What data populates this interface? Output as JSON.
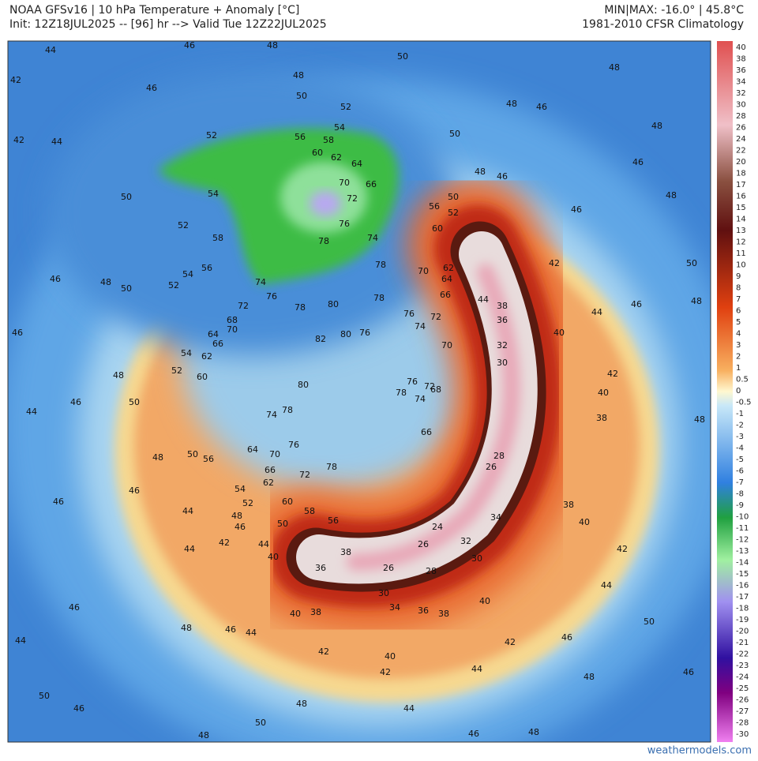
{
  "header": {
    "title": "NOAA GFSv16 | 10 hPa Temperature + Anomaly [°C]",
    "init": "Init: 12Z18JUL2025 -- [96] hr --> Valid Tue 12Z22JUL2025",
    "minmax": "MIN|MAX: -16.0° | 45.8°C",
    "climatology": "1981-2010 CFSR Climatology"
  },
  "colorbar": {
    "labels": [
      "40",
      "38",
      "36",
      "34",
      "32",
      "30",
      "28",
      "26",
      "24",
      "22",
      "20",
      "18",
      "17",
      "16",
      "15",
      "14",
      "13",
      "12",
      "11",
      "10",
      "9",
      "8",
      "7",
      "6",
      "5",
      "4",
      "3",
      "2",
      "1",
      "0.5",
      "0",
      "-0.5",
      "-1",
      "-2",
      "-3",
      "-4",
      "-5",
      "-6",
      "-7",
      "-8",
      "-9",
      "-10",
      "-11",
      "-12",
      "-13",
      "-14",
      "-15",
      "-16",
      "-17",
      "-18",
      "-19",
      "-20",
      "-21",
      "-22",
      "-23",
      "-24",
      "-25",
      "-26",
      "-27",
      "-28",
      "-30"
    ]
  },
  "map": {
    "contour_labels": [
      "44",
      "46",
      "48",
      "50",
      "42",
      "46",
      "48",
      "50",
      "52",
      "54",
      "52",
      "56",
      "58",
      "60",
      "62",
      "64",
      "70",
      "66",
      "72",
      "76",
      "78",
      "74",
      "78",
      "74",
      "76",
      "78",
      "80",
      "78",
      "72",
      "68",
      "70",
      "64",
      "66",
      "62",
      "54",
      "52",
      "60",
      "82",
      "80",
      "76",
      "80",
      "74",
      "78",
      "76",
      "70",
      "64",
      "56",
      "50",
      "66",
      "62",
      "72",
      "78",
      "54",
      "52",
      "60",
      "58",
      "56",
      "50",
      "48",
      "46",
      "42",
      "44",
      "40",
      "44",
      "36",
      "38",
      "26",
      "30",
      "28",
      "26",
      "24",
      "32",
      "30",
      "34",
      "28",
      "26",
      "44",
      "38",
      "36",
      "32",
      "30",
      "40",
      "42",
      "44",
      "42",
      "40",
      "38",
      "38",
      "40",
      "42",
      "44",
      "40",
      "38",
      "36",
      "34",
      "40",
      "38",
      "42",
      "40",
      "42",
      "44",
      "42",
      "46",
      "48",
      "50",
      "46",
      "48",
      "44",
      "46",
      "48",
      "48",
      "50",
      "46",
      "50",
      "44",
      "46",
      "48",
      "46",
      "44",
      "46",
      "46",
      "44",
      "48",
      "46",
      "44",
      "48",
      "50",
      "46",
      "46",
      "48",
      "50",
      "52",
      "54",
      "56",
      "58",
      "52",
      "54",
      "50",
      "42",
      "44",
      "50",
      "48",
      "46",
      "48",
      "46",
      "50",
      "56",
      "52",
      "60",
      "62",
      "64",
      "70",
      "66",
      "72",
      "74",
      "76",
      "70",
      "76",
      "78",
      "72",
      "68",
      "74",
      "66",
      "48",
      "48",
      "46",
      "48",
      "46",
      "50",
      "48",
      "46",
      "48"
    ]
  },
  "footer": {
    "credit": "weathermodels.com"
  }
}
